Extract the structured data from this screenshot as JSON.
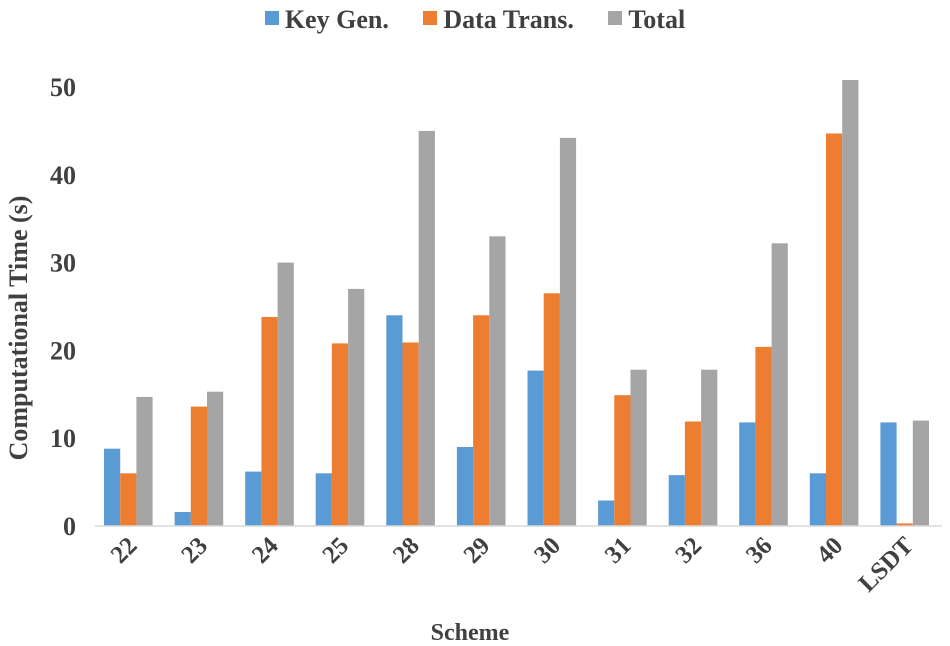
{
  "chart_data": {
    "type": "bar",
    "title": "",
    "xlabel": "Scheme",
    "ylabel": "Computational Time (s)",
    "ylim": [
      0,
      50
    ],
    "yticks": [
      "0",
      "10",
      "20",
      "30",
      "40",
      "50"
    ],
    "grid": false,
    "legend_position": "top-center",
    "categories": [
      "22",
      "23",
      "24",
      "25",
      "28",
      "29",
      "30",
      "31",
      "32",
      "36",
      "40",
      "LSDT"
    ],
    "series": [
      {
        "name": "Key Gen.",
        "color": "#5B9BD5",
        "values": [
          8.8,
          1.6,
          6.2,
          6.0,
          24.0,
          9.0,
          17.7,
          2.9,
          5.8,
          11.8,
          6.0,
          11.8
        ]
      },
      {
        "name": "Data Trans.",
        "color": "#ED7D31",
        "values": [
          6.0,
          13.6,
          23.8,
          20.8,
          20.9,
          24.0,
          26.5,
          14.9,
          11.9,
          20.4,
          44.7,
          0.3
        ]
      },
      {
        "name": "Total",
        "color": "#A5A5A5",
        "values": [
          14.7,
          15.3,
          30.0,
          27.0,
          45.0,
          33.0,
          44.2,
          17.8,
          17.8,
          32.2,
          50.8,
          12.0
        ]
      }
    ]
  }
}
